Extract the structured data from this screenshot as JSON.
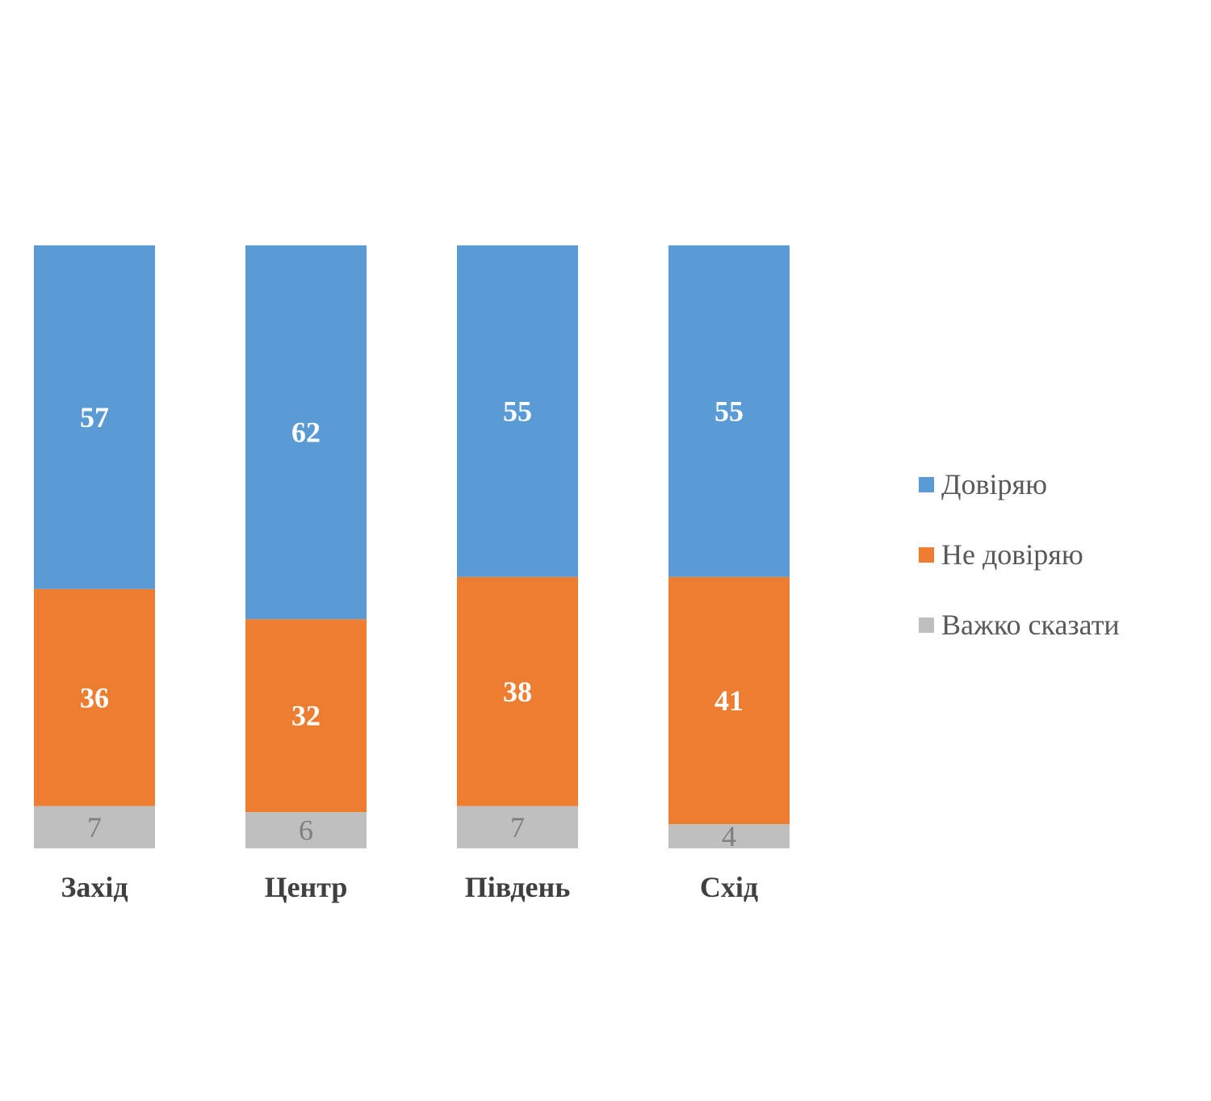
{
  "chart_data": {
    "type": "bar",
    "stacked": true,
    "percent_stacked": true,
    "categories": [
      "Захід",
      "Центр",
      "Південь",
      "Схід"
    ],
    "series": [
      {
        "name": "Довіряю",
        "color": "#5b9bd5",
        "values": [
          57,
          62,
          55,
          55
        ]
      },
      {
        "name": "Не довіряю",
        "color": "#ed7d31",
        "values": [
          36,
          32,
          38,
          41
        ]
      },
      {
        "name": "Важко сказати",
        "color": "#bfbfbf",
        "values": [
          7,
          6,
          7,
          4
        ]
      }
    ],
    "data_label_colors": [
      "#ffffff",
      "#ffffff",
      "#7f7f7f"
    ],
    "legend_position": "right",
    "grid": false,
    "axes_visible": false,
    "title": ""
  },
  "legend": {
    "items": [
      {
        "label": "Довіряю",
        "color": "#5b9bd5"
      },
      {
        "label": "Не довіряю",
        "color": "#ed7d31"
      },
      {
        "label": "Важко сказати",
        "color": "#bfbfbf"
      }
    ]
  }
}
